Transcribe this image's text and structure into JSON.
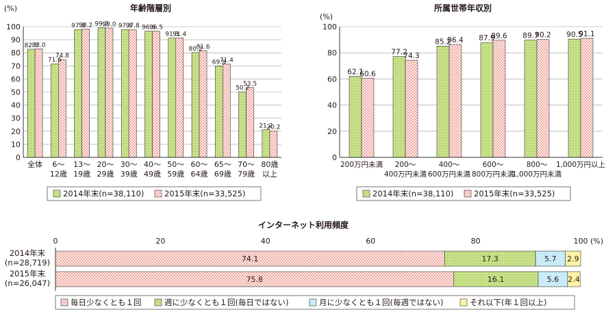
{
  "colors": {
    "green": "#c8e08a",
    "green_dot": "#8cbf3a",
    "red_bg": "#fbe3df",
    "red_dot": "#e0665a",
    "blue": "#bfe6f6",
    "blue_dot": "#ffffff",
    "yellow": "#fff3a6",
    "axis": "#333333",
    "grid": "#9b9b9b"
  },
  "legend_top": {
    "s2014": "2014年末(n=38,110)",
    "s2015": "2015年末(n=33,525)"
  },
  "chart_data": [
    {
      "type": "bar",
      "title": "年齢階層別",
      "ylabel": "(%)",
      "ylim": [
        0,
        100
      ],
      "yticks": [
        "0",
        "10",
        "20",
        "30",
        "40",
        "50",
        "60",
        "70",
        "80",
        "90",
        "100"
      ],
      "categories": [
        [
          "全体"
        ],
        [
          "6～",
          "12歳"
        ],
        [
          "13～",
          "19歳"
        ],
        [
          "20～",
          "29歳"
        ],
        [
          "30～",
          "39歳"
        ],
        [
          "40～",
          "49歳"
        ],
        [
          "50～",
          "59歳"
        ],
        [
          "60～",
          "64歳"
        ],
        [
          "65～",
          "69歳"
        ],
        [
          "70～",
          "79歳"
        ],
        [
          "80歳",
          "以上"
        ]
      ],
      "series": [
        {
          "name": "2014年末(n=38,110)",
          "values": [
            82.8,
            71.6,
            97.8,
            99.2,
            97.8,
            96.6,
            91.3,
            80.2,
            69.8,
            50.2,
            21.2
          ],
          "labels": [
            "82.8",
            "71.6",
            "97.8",
            "99.2",
            "97.8",
            "96.6",
            "91.3",
            "80.2",
            "69.8",
            "50.2",
            "21.2"
          ]
        },
        {
          "name": "2015年末(n=33,525)",
          "values": [
            83.0,
            74.8,
            98.2,
            99.0,
            97.8,
            96.5,
            91.4,
            81.6,
            71.4,
            53.5,
            20.2
          ],
          "labels": [
            "83.0",
            "74.8",
            "98.2",
            "99.0",
            "97.8",
            "96.5",
            "91.4",
            "81.6",
            "71.4",
            "53.5",
            "20.2"
          ]
        }
      ]
    },
    {
      "type": "bar",
      "title": "所属世帯年収別",
      "ylabel": "(%)",
      "ylim": [
        0,
        100
      ],
      "yticks": [
        "0",
        "20",
        "40",
        "60",
        "80",
        "100"
      ],
      "categories": [
        [
          "200万円未満"
        ],
        [
          "200～",
          "400万円未満"
        ],
        [
          "400～",
          "600万円未満"
        ],
        [
          "600～",
          "800万円未満"
        ],
        [
          "800～",
          "1,000万円未満"
        ],
        [
          "1,000万円以上"
        ]
      ],
      "series": [
        {
          "name": "2014年末(n=38,110)",
          "values": [
            62.1,
            77.2,
            85.2,
            87.9,
            89.7,
            90.5
          ],
          "labels": [
            "62.1",
            "77.2",
            "85.2",
            "87.9",
            "89.7",
            "90.5"
          ]
        },
        {
          "name": "2015年末(n=33,525)",
          "values": [
            60.6,
            74.3,
            86.4,
            89.6,
            90.2,
            91.1
          ],
          "labels": [
            "60.6",
            "74.3",
            "86.4",
            "89.6",
            "90.2",
            "91.1"
          ]
        }
      ]
    },
    {
      "type": "bar",
      "stacked": true,
      "orientation": "horizontal",
      "title": "インターネット利用頻度",
      "xlim": [
        0,
        100
      ],
      "xticks": [
        "0",
        "20",
        "40",
        "60",
        "80",
        "100"
      ],
      "xunit": "(%)",
      "categories": [
        [
          "2014年末",
          "(n=28,719)"
        ],
        [
          "2015年末",
          "(n=26,047)"
        ]
      ],
      "series": [
        {
          "name": "毎日少なくとも１回",
          "values": [
            74.1,
            75.8
          ],
          "labels": [
            "74.1",
            "75.8"
          ]
        },
        {
          "name": "週に少なくとも１回(毎日ではない)",
          "values": [
            17.3,
            16.1
          ],
          "labels": [
            "17.3",
            "16.1"
          ]
        },
        {
          "name": "月に少なくとも１回(毎週ではない)",
          "values": [
            5.7,
            5.6
          ],
          "labels": [
            "5.7",
            "5.6"
          ]
        },
        {
          "name": "それ以下(年１回以上)",
          "values": [
            2.9,
            2.4
          ],
          "labels": [
            "2.9",
            "2.4"
          ]
        }
      ]
    }
  ]
}
